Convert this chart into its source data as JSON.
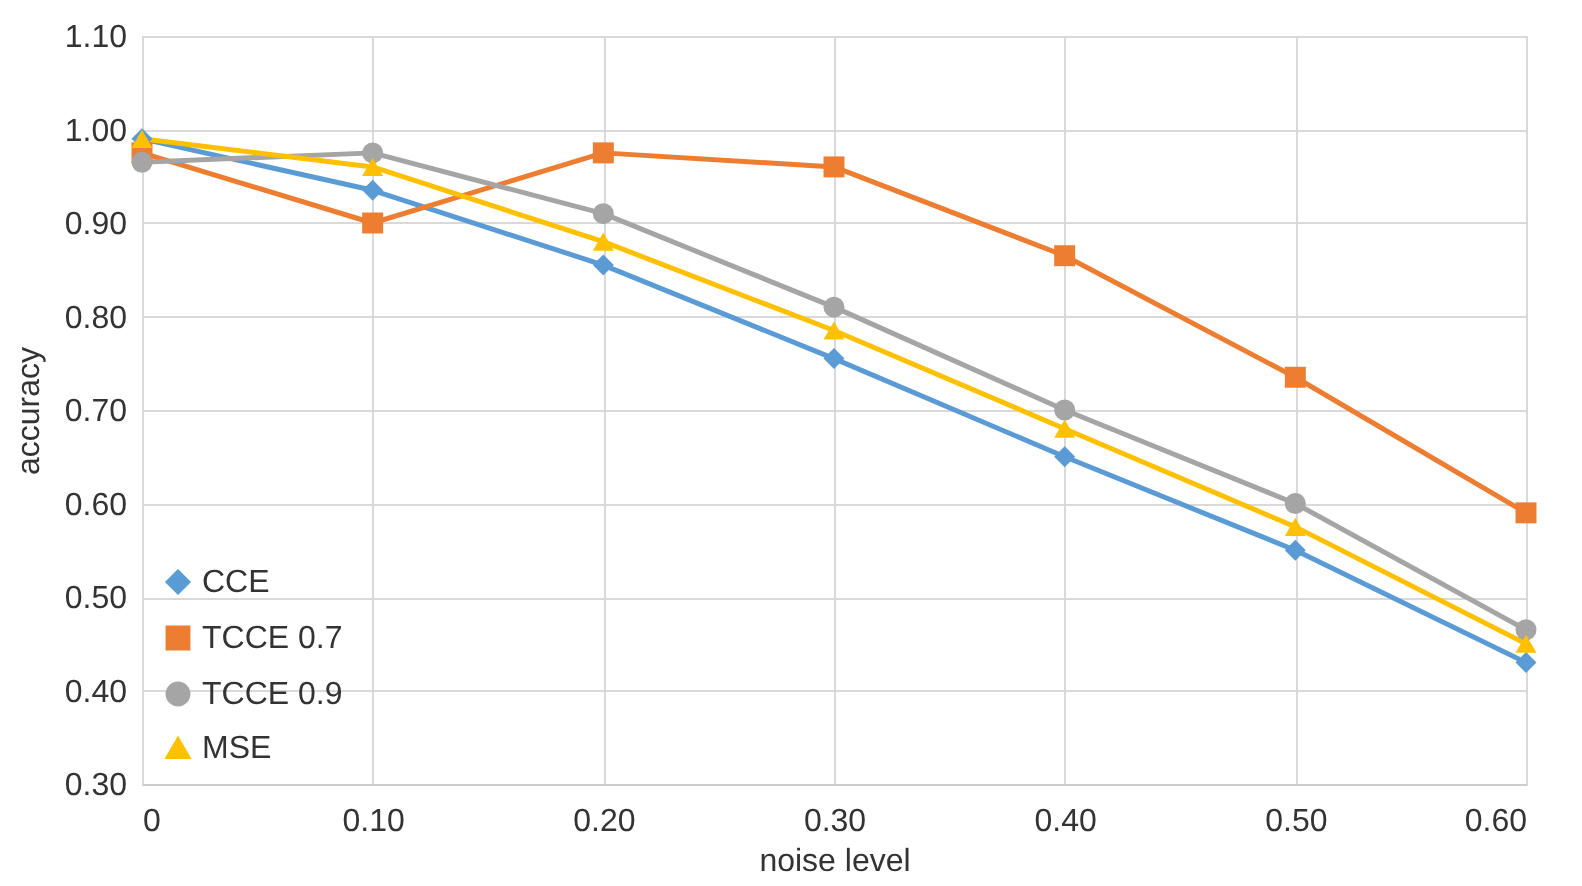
{
  "chart_data": {
    "type": "line",
    "xlabel": "noise level",
    "ylabel": "accuracy",
    "x": [
      0,
      0.1,
      0.2,
      0.3,
      0.4,
      0.5,
      0.6
    ],
    "series": [
      {
        "name": "CCE",
        "color": "#5b9bd5",
        "marker": "diamond",
        "values": [
          0.99,
          0.935,
          0.855,
          0.755,
          0.65,
          0.55,
          0.43
        ]
      },
      {
        "name": "TCCE 0.7",
        "color": "#ed7d31",
        "marker": "square",
        "values": [
          0.975,
          0.9,
          0.975,
          0.96,
          0.865,
          0.735,
          0.59
        ]
      },
      {
        "name": "TCCE 0.9",
        "color": "#a5a5a5",
        "marker": "circle",
        "values": [
          0.965,
          0.975,
          0.91,
          0.81,
          0.7,
          0.6,
          0.465
        ]
      },
      {
        "name": "MSE",
        "color": "#ffc000",
        "marker": "triangle",
        "values": [
          0.99,
          0.96,
          0.88,
          0.785,
          0.68,
          0.575,
          0.45
        ]
      }
    ],
    "xlim": [
      0,
      0.6
    ],
    "xticks": [
      0,
      {
        "value": 0.1,
        "label": "0.10"
      },
      {
        "value": 0.2,
        "label": "0.20"
      },
      {
        "value": 0.3,
        "label": "0.30"
      },
      {
        "value": 0.4,
        "label": "0.40"
      },
      {
        "value": 0.5,
        "label": "0.50"
      },
      {
        "value": 0.6,
        "label": "0.60"
      }
    ],
    "ylim": [
      0.3,
      1.1
    ],
    "yticks": [
      {
        "value": 0.3,
        "label": "0.30"
      },
      {
        "value": 0.4,
        "label": "0.40"
      },
      {
        "value": 0.5,
        "label": "0.50"
      },
      {
        "value": 0.6,
        "label": "0.60"
      },
      {
        "value": 0.7,
        "label": "0.70"
      },
      {
        "value": 0.8,
        "label": "0.80"
      },
      {
        "value": 0.9,
        "label": "0.90"
      },
      {
        "value": 1.0,
        "label": "1.00"
      },
      {
        "value": 1.1,
        "label": "1.10"
      }
    ],
    "grid": true,
    "legend": "bottom left",
    "line_style": "solid"
  }
}
